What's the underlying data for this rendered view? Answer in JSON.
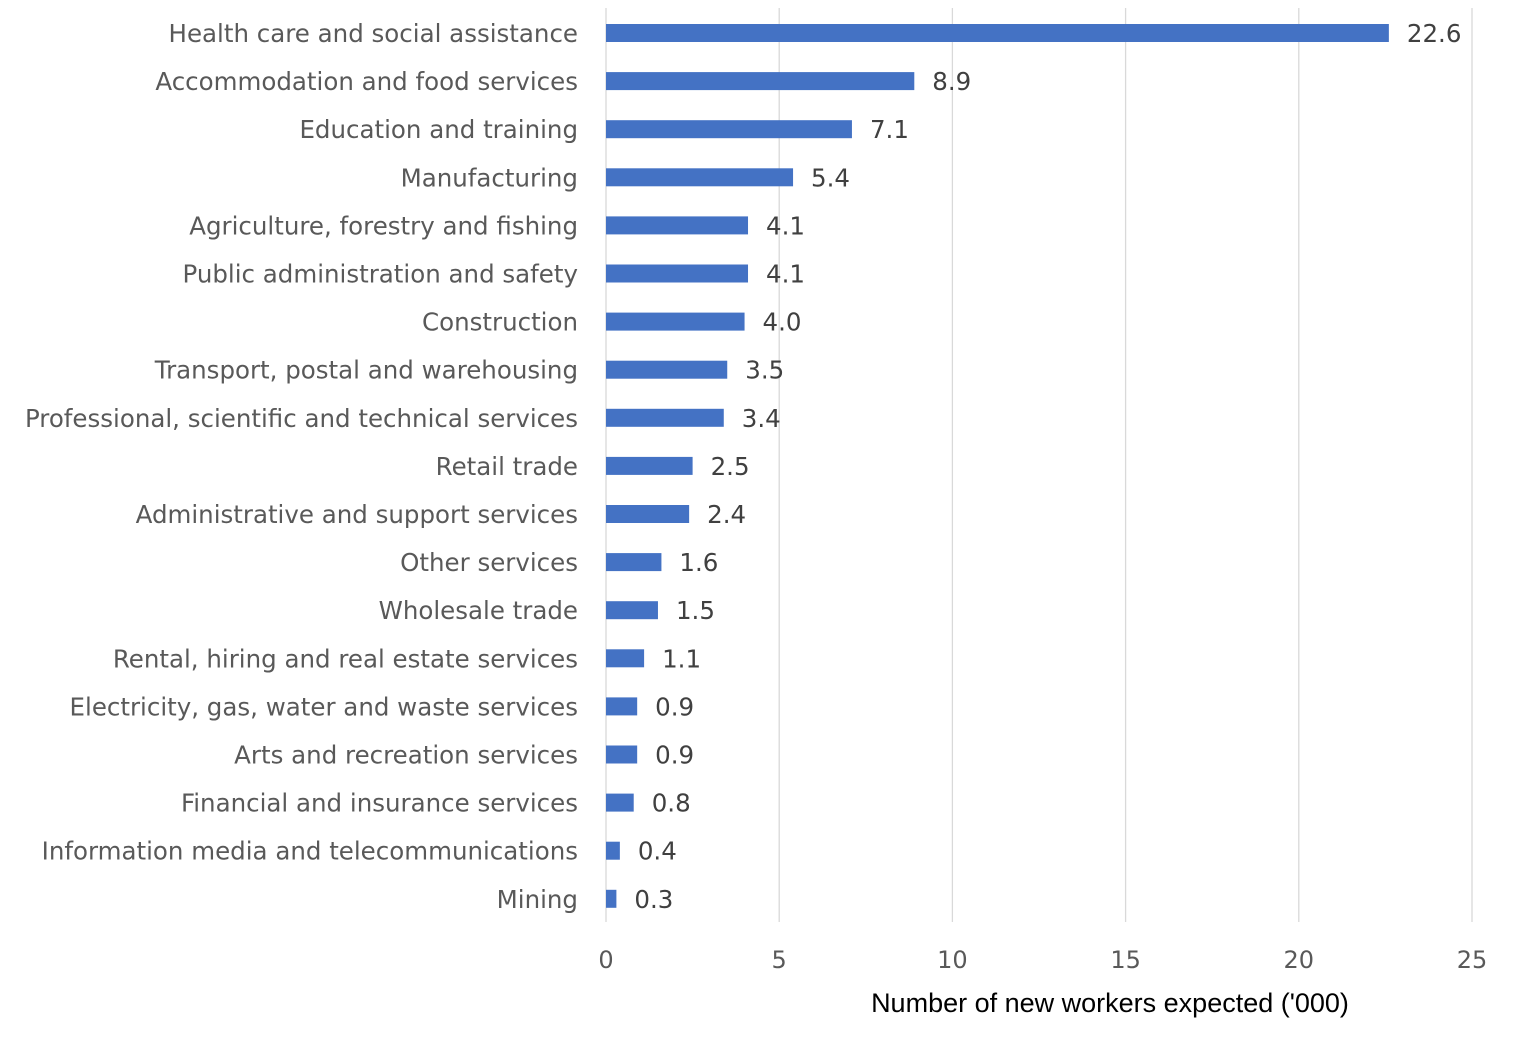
{
  "chart_data": {
    "type": "bar",
    "orientation": "horizontal",
    "categories": [
      "Health care and social assistance",
      "Accommodation and food services",
      "Education and training",
      "Manufacturing",
      "Agriculture, forestry and fishing",
      "Public administration and safety",
      "Construction",
      "Transport, postal and warehousing",
      "Professional, scientific and technical services",
      "Retail trade",
      "Administrative and support services",
      "Other services",
      "Wholesale trade",
      "Rental, hiring and real estate services",
      "Electricity, gas, water and waste services",
      "Arts and recreation services",
      "Financial and insurance services",
      "Information media and telecommunications",
      "Mining"
    ],
    "values": [
      22.6,
      8.9,
      7.1,
      5.4,
      4.1,
      4.1,
      4.0,
      3.5,
      3.4,
      2.5,
      2.4,
      1.6,
      1.5,
      1.1,
      0.9,
      0.9,
      0.8,
      0.4,
      0.3
    ],
    "value_labels": [
      "22.6",
      "8.9",
      "7.1",
      "5.4",
      "4.1",
      "4.1",
      "4.0",
      "3.5",
      "3.4",
      "2.5",
      "2.4",
      "1.6",
      "1.5",
      "1.1",
      "0.9",
      "0.9",
      "0.8",
      "0.4",
      "0.3"
    ],
    "xticks": [
      "0",
      "5",
      "10",
      "15",
      "20",
      "25"
    ],
    "xlim": [
      0,
      25
    ],
    "xlabel": "Number of new workers expected ('000)",
    "ylabel": "",
    "title": "",
    "grid": "vertical",
    "legend": "none",
    "bar_color": "#4472c4"
  }
}
